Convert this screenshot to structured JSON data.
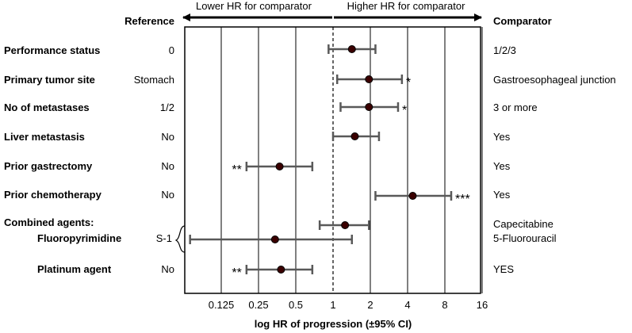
{
  "chart_data": {
    "type": "forest",
    "scale": "log2",
    "xlabel": "log HR of progression (±95% CI)",
    "x_ticks": [
      0.125,
      0.25,
      0.5,
      1,
      2,
      4,
      8,
      16
    ],
    "x_tick_labels": [
      "0.125",
      "0.25",
      "0.5",
      "1",
      "2",
      "4",
      "8",
      "16"
    ],
    "xlim": [
      0.0625,
      16
    ],
    "reference_line": 1,
    "header": {
      "reference": "Reference",
      "comparator": "Comparator",
      "lower_arrow": "Lower HR  for comparator",
      "higher_arrow": "Higher HR  for comparator"
    },
    "rows": [
      {
        "label": "Performance status",
        "reference": "0",
        "comparator": "1/2/3",
        "hr": 1.42,
        "ci_low": 0.92,
        "ci_high": 2.2,
        "significance": ""
      },
      {
        "label": "Primary tumor site",
        "reference": "Stomach",
        "comparator": "Gastroesophageal junction",
        "hr": 1.95,
        "ci_low": 1.08,
        "ci_high": 3.6,
        "significance": "*"
      },
      {
        "label": "No of metastases",
        "reference": "1/2",
        "comparator": "3 or more",
        "hr": 1.95,
        "ci_low": 1.15,
        "ci_high": 3.35,
        "significance": "*"
      },
      {
        "label": "Liver metastasis",
        "reference": "No",
        "comparator": "Yes",
        "hr": 1.5,
        "ci_low": 1.0,
        "ci_high": 2.35,
        "significance": ""
      },
      {
        "label": "Prior gastrectomy",
        "reference": "No",
        "comparator": "Yes",
        "hr": 0.37,
        "ci_low": 0.2,
        "ci_high": 0.68,
        "significance": "**"
      },
      {
        "label": "Prior chemotherapy",
        "reference": "No",
        "comparator": "Yes",
        "hr": 4.4,
        "ci_low": 2.2,
        "ci_high": 9.0,
        "significance": "***"
      },
      {
        "group_label": "Combined agents:",
        "label": "Fluoropyrimidine",
        "reference": "S-1",
        "comparator": "Capecitabine",
        "comparator_line2": "5-Fluorouracil",
        "hr": 1.25,
        "ci_low": 0.78,
        "ci_high": 1.95,
        "hr2": 0.34,
        "ci2_low": 0.07,
        "ci2_high": 1.42,
        "significance": ""
      },
      {
        "label": "Platinum agent",
        "reference": "No",
        "comparator": "YES",
        "hr": 0.38,
        "ci_low": 0.2,
        "ci_high": 0.68,
        "significance": "**"
      }
    ]
  }
}
